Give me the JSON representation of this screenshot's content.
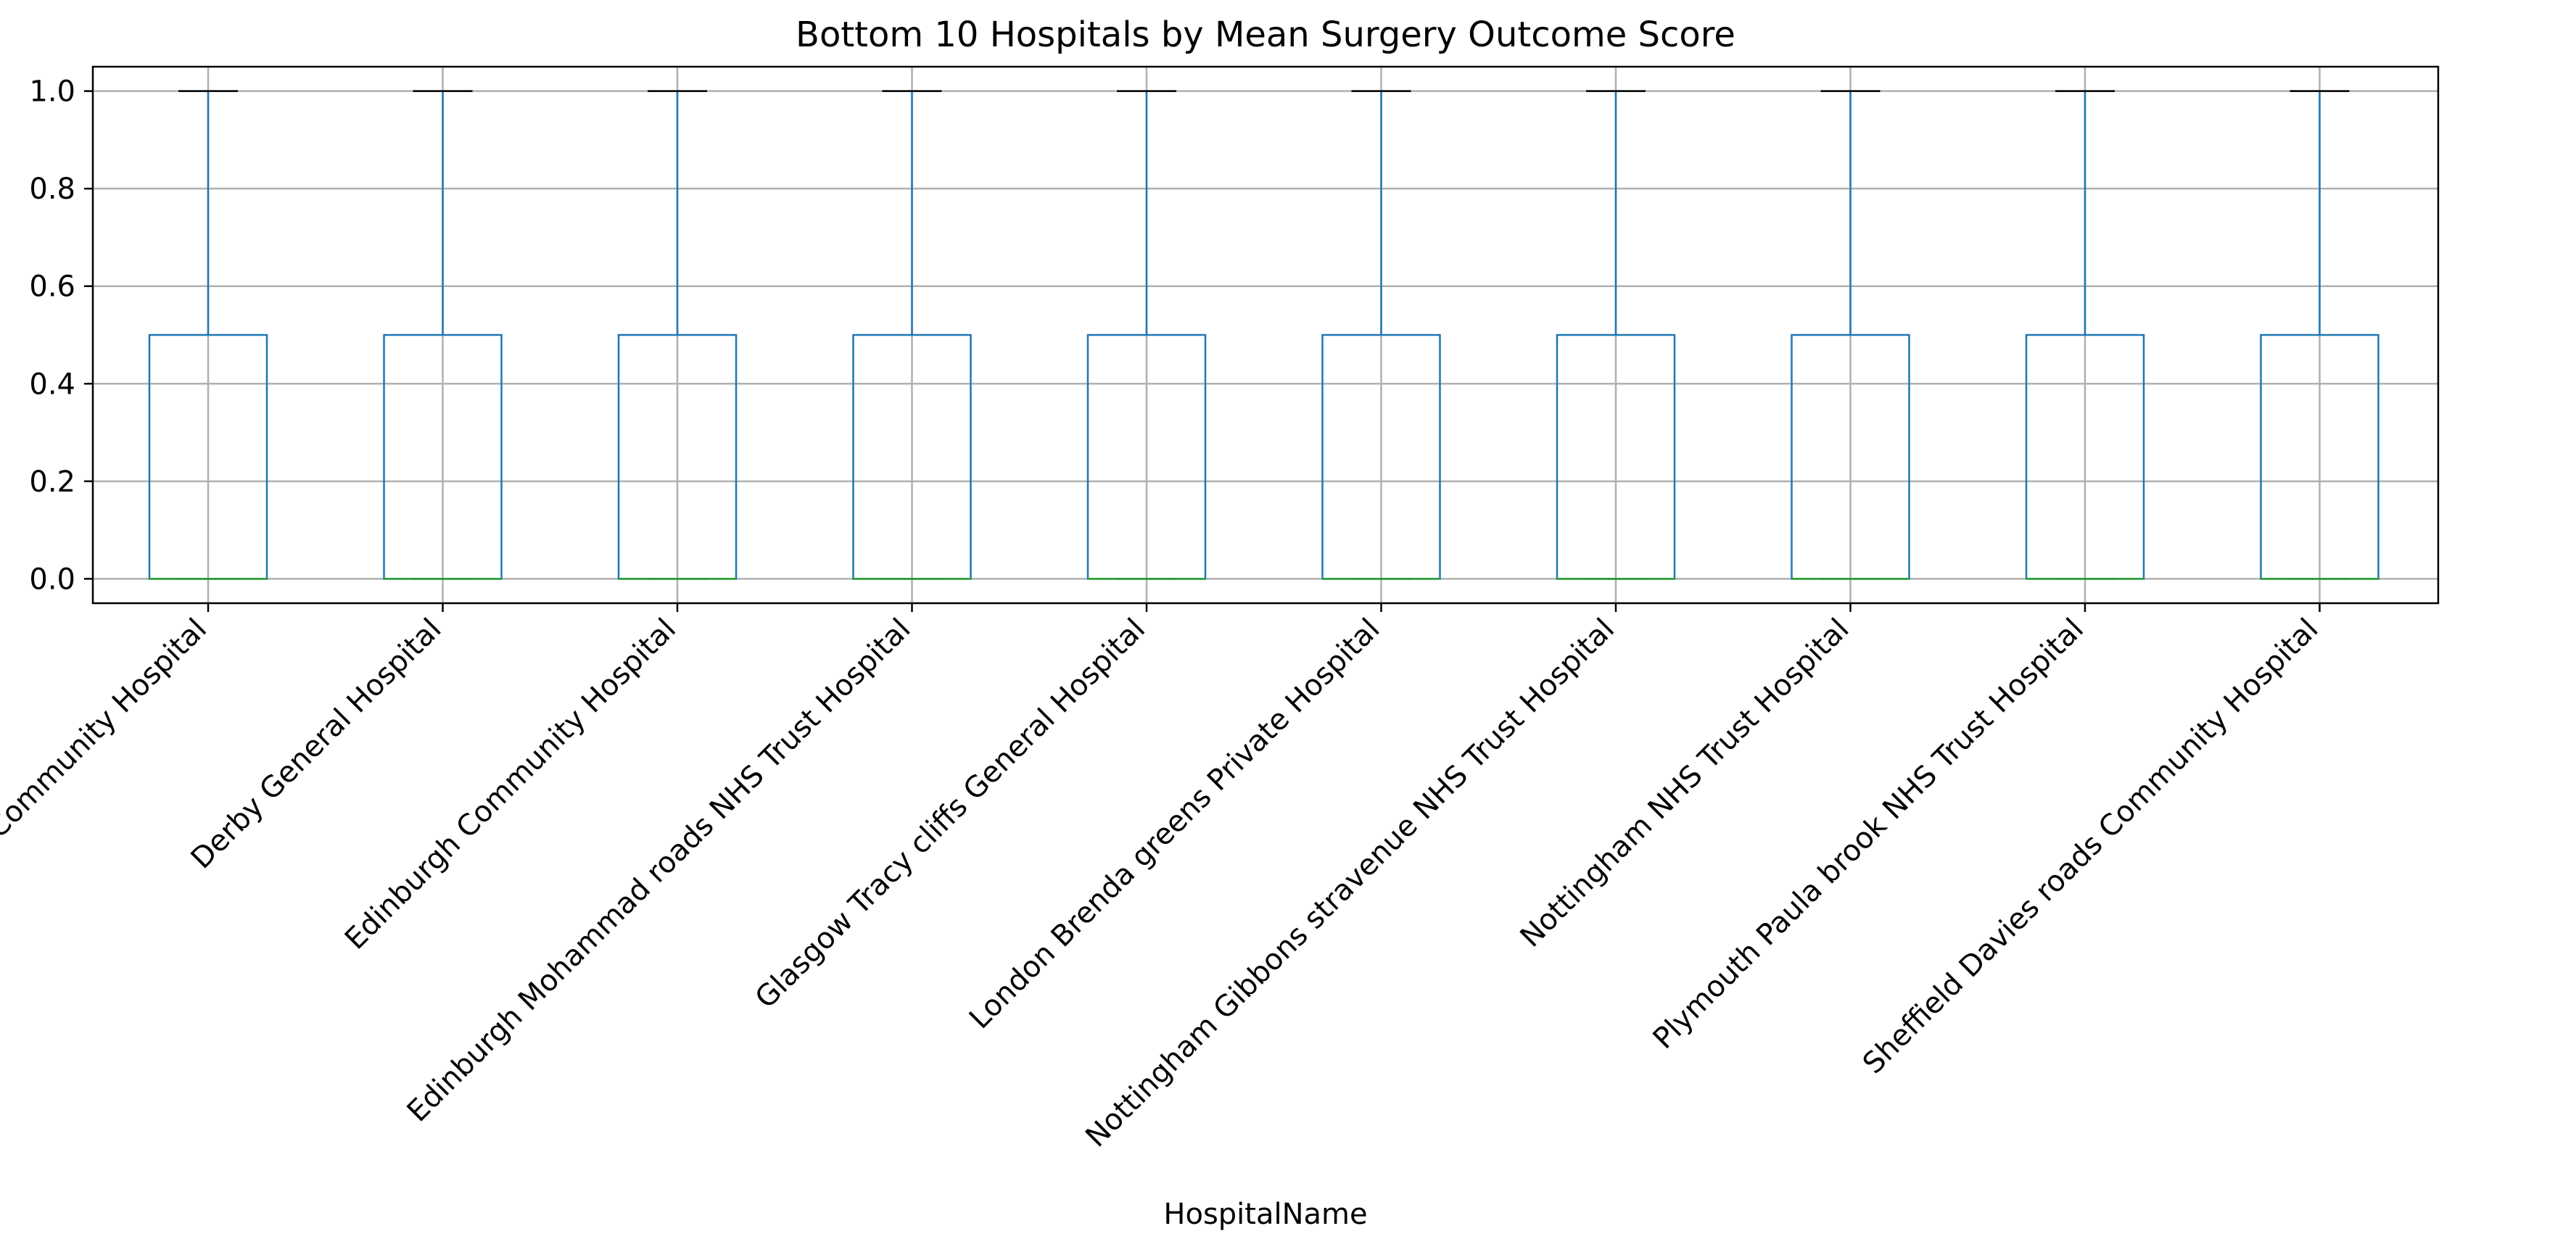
{
  "chart_data": {
    "type": "boxplot",
    "title": "Bottom 10 Hospitals by Mean Surgery Outcome Score",
    "xlabel": "HospitalName",
    "ylabel": "",
    "ylim": [
      -0.05,
      1.05
    ],
    "yticks": [
      0.0,
      0.2,
      0.4,
      0.6,
      0.8,
      1.0
    ],
    "ytick_labels": [
      "0.0",
      "0.2",
      "0.4",
      "0.6",
      "0.8",
      "1.0"
    ],
    "grid": true,
    "categories": [
      "Coventry Community Hospital",
      "Derby General Hospital",
      "Edinburgh Community Hospital",
      "Edinburgh Mohammad roads NHS Trust Hospital",
      "Glasgow Tracy cliffs General Hospital",
      "London Brenda greens Private Hospital",
      "Nottingham Gibbons stravenue NHS Trust Hospital",
      "Nottingham NHS Trust Hospital",
      "Plymouth Paula brook NHS Trust Hospital",
      "Sheffield Davies roads Community Hospital"
    ],
    "boxes": [
      {
        "whisker_low": 0.0,
        "q1": 0.0,
        "median": 0.0,
        "q3": 0.5,
        "whisker_high": 1.0
      },
      {
        "whisker_low": 0.0,
        "q1": 0.0,
        "median": 0.0,
        "q3": 0.5,
        "whisker_high": 1.0
      },
      {
        "whisker_low": 0.0,
        "q1": 0.0,
        "median": 0.0,
        "q3": 0.5,
        "whisker_high": 1.0
      },
      {
        "whisker_low": 0.0,
        "q1": 0.0,
        "median": 0.0,
        "q3": 0.5,
        "whisker_high": 1.0
      },
      {
        "whisker_low": 0.0,
        "q1": 0.0,
        "median": 0.0,
        "q3": 0.5,
        "whisker_high": 1.0
      },
      {
        "whisker_low": 0.0,
        "q1": 0.0,
        "median": 0.0,
        "q3": 0.5,
        "whisker_high": 1.0
      },
      {
        "whisker_low": 0.0,
        "q1": 0.0,
        "median": 0.0,
        "q3": 0.5,
        "whisker_high": 1.0
      },
      {
        "whisker_low": 0.0,
        "q1": 0.0,
        "median": 0.0,
        "q3": 0.5,
        "whisker_high": 1.0
      },
      {
        "whisker_low": 0.0,
        "q1": 0.0,
        "median": 0.0,
        "q3": 0.5,
        "whisker_high": 1.0
      },
      {
        "whisker_low": 0.0,
        "q1": 0.0,
        "median": 0.0,
        "q3": 0.5,
        "whisker_high": 1.0
      }
    ],
    "colors": {
      "box": "#1f77b4",
      "median": "#2ca02c",
      "cap": "#000000",
      "grid": "#b0b0b0",
      "axis": "#000000"
    }
  }
}
